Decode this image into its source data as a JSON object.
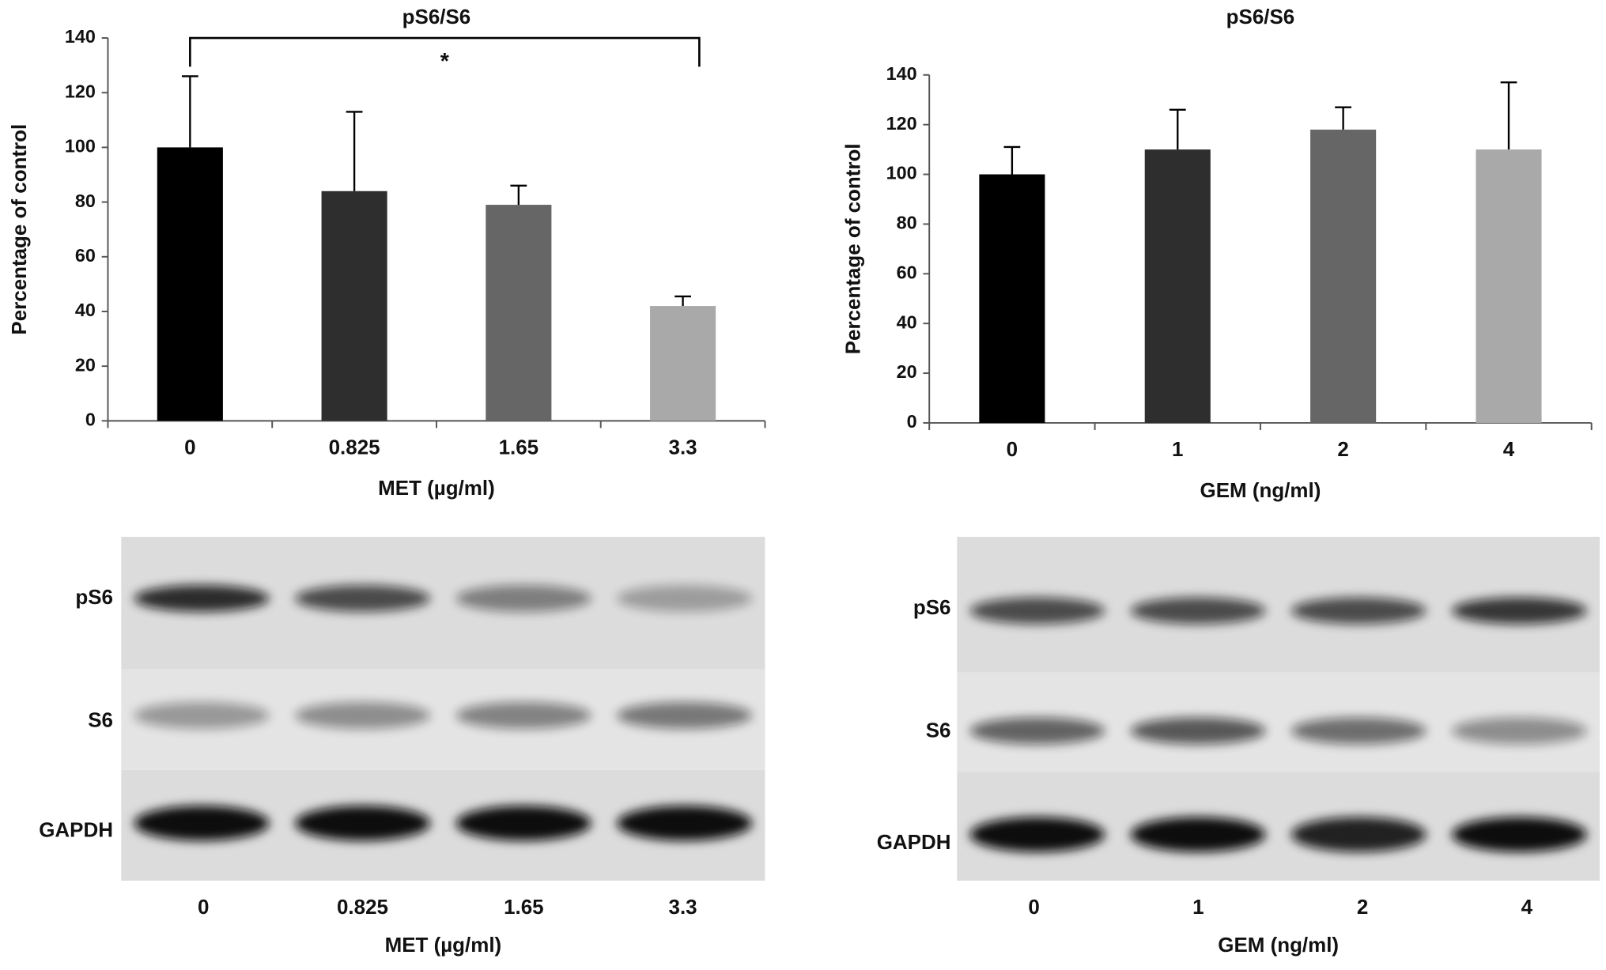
{
  "chart_data": [
    {
      "type": "bar",
      "title": "pS6/S6",
      "x_label": "MET (µg/ml)",
      "y_label": "Percentage of control",
      "categories": [
        "0",
        "0.825",
        "1.65",
        "3.3"
      ],
      "values": [
        100,
        84,
        79,
        42
      ],
      "errors": [
        26,
        29,
        7,
        3.5
      ],
      "colors": [
        "#000000",
        "#2e2e2e",
        "#666666",
        "#a9a9a9"
      ],
      "ylim": [
        0,
        140
      ],
      "yticks": [
        0,
        20,
        40,
        60,
        80,
        100,
        120,
        140
      ],
      "annotation": "*"
    },
    {
      "type": "bar",
      "title": "pS6/S6",
      "x_label": "GEM (ng/ml)",
      "y_label": "Percentage of control",
      "categories": [
        "0",
        "1",
        "2",
        "4"
      ],
      "values": [
        100,
        110,
        118,
        110
      ],
      "errors": [
        11,
        16,
        9,
        27
      ],
      "colors": [
        "#000000",
        "#2e2e2e",
        "#666666",
        "#a9a9a9"
      ],
      "ylim": [
        0,
        140
      ],
      "yticks": [
        0,
        20,
        40,
        60,
        80,
        100,
        120,
        140
      ]
    }
  ],
  "blots": [
    {
      "rows": [
        "pS6",
        "S6",
        "GAPDH"
      ],
      "lanes": [
        "0",
        "0.825",
        "1.65",
        "3.3"
      ],
      "x_label": "MET (µg/ml)"
    },
    {
      "rows": [
        "pS6",
        "S6",
        "GAPDH"
      ],
      "lanes": [
        "0",
        "1",
        "2",
        "4"
      ],
      "x_label": "GEM (ng/ml)"
    }
  ]
}
